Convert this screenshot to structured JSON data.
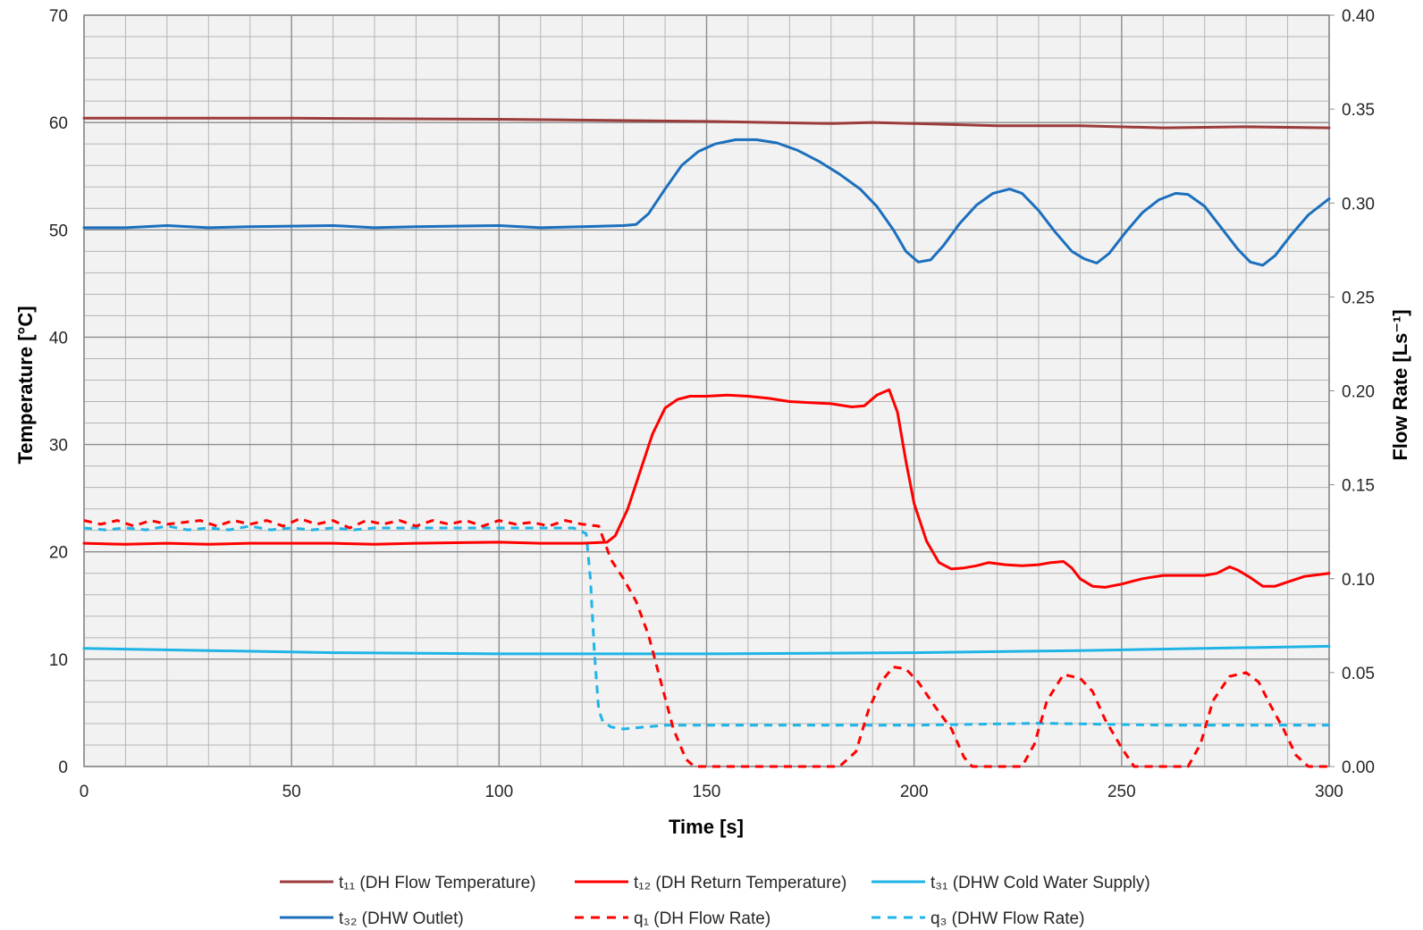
{
  "chart_data": {
    "type": "line",
    "xlabel": "Time [s]",
    "ylabel_left": "Temperature [°C]",
    "ylabel_right": "Flow Rate [Ls⁻¹]",
    "xlim": [
      0,
      300
    ],
    "ylim_left": [
      0,
      70
    ],
    "ylim_right": [
      0,
      0.4
    ],
    "x_ticks": [
      "0",
      "50",
      "100",
      "150",
      "200",
      "250",
      "300"
    ],
    "y_left_ticks": [
      "0",
      "10",
      "20",
      "30",
      "40",
      "50",
      "60",
      "70"
    ],
    "y_right_ticks": [
      "0.00",
      "0.05",
      "0.10",
      "0.15",
      "0.20",
      "0.25",
      "0.30",
      "0.35",
      "0.40"
    ],
    "grid": true,
    "plot_background": "#f2f2f2",
    "legend_position": "bottom",
    "series": [
      {
        "name": "t₁₁ (DH Flow Temperature)",
        "axis": "left",
        "color": "#9c3b3b",
        "style": "solid",
        "points": [
          [
            0,
            60.4
          ],
          [
            50,
            60.4
          ],
          [
            100,
            60.3
          ],
          [
            150,
            60.1
          ],
          [
            180,
            59.9
          ],
          [
            190,
            60.0
          ],
          [
            200,
            59.9
          ],
          [
            220,
            59.7
          ],
          [
            240,
            59.7
          ],
          [
            260,
            59.5
          ],
          [
            280,
            59.6
          ],
          [
            300,
            59.5
          ]
        ]
      },
      {
        "name": "t₁₂ (DH Return Temperature)",
        "axis": "left",
        "color": "#ff0000",
        "style": "solid",
        "points": [
          [
            0,
            20.8
          ],
          [
            10,
            20.7
          ],
          [
            20,
            20.8
          ],
          [
            30,
            20.7
          ],
          [
            40,
            20.8
          ],
          [
            60,
            20.8
          ],
          [
            70,
            20.7
          ],
          [
            80,
            20.8
          ],
          [
            100,
            20.9
          ],
          [
            110,
            20.8
          ],
          [
            120,
            20.8
          ],
          [
            126,
            20.9
          ],
          [
            128,
            21.5
          ],
          [
            131,
            24
          ],
          [
            134,
            27.5
          ],
          [
            137,
            31
          ],
          [
            140,
            33.4
          ],
          [
            143,
            34.2
          ],
          [
            146,
            34.5
          ],
          [
            150,
            34.5
          ],
          [
            155,
            34.6
          ],
          [
            160,
            34.5
          ],
          [
            165,
            34.3
          ],
          [
            170,
            34.0
          ],
          [
            175,
            33.9
          ],
          [
            180,
            33.8
          ],
          [
            185,
            33.5
          ],
          [
            188,
            33.6
          ],
          [
            191,
            34.6
          ],
          [
            194,
            35.1
          ],
          [
            196,
            33
          ],
          [
            198,
            28.5
          ],
          [
            200,
            24.5
          ],
          [
            203,
            21.0
          ],
          [
            206,
            19.0
          ],
          [
            209,
            18.4
          ],
          [
            212,
            18.5
          ],
          [
            215,
            18.7
          ],
          [
            218,
            19.0
          ],
          [
            222,
            18.8
          ],
          [
            226,
            18.7
          ],
          [
            230,
            18.8
          ],
          [
            233,
            19.0
          ],
          [
            236,
            19.1
          ],
          [
            238,
            18.5
          ],
          [
            240,
            17.5
          ],
          [
            243,
            16.8
          ],
          [
            246,
            16.7
          ],
          [
            250,
            17.0
          ],
          [
            255,
            17.5
          ],
          [
            260,
            17.8
          ],
          [
            265,
            17.8
          ],
          [
            270,
            17.8
          ],
          [
            273,
            18.0
          ],
          [
            276,
            18.6
          ],
          [
            278,
            18.3
          ],
          [
            281,
            17.6
          ],
          [
            284,
            16.8
          ],
          [
            287,
            16.8
          ],
          [
            290,
            17.2
          ],
          [
            294,
            17.7
          ],
          [
            300,
            18.0
          ]
        ]
      },
      {
        "name": "t₃₁ (DHW Cold Water Supply)",
        "axis": "left",
        "color": "#1fb4e6",
        "style": "solid",
        "points": [
          [
            0,
            11.0
          ],
          [
            30,
            10.8
          ],
          [
            60,
            10.6
          ],
          [
            100,
            10.5
          ],
          [
            150,
            10.5
          ],
          [
            200,
            10.6
          ],
          [
            240,
            10.8
          ],
          [
            270,
            11.0
          ],
          [
            300,
            11.2
          ]
        ]
      },
      {
        "name": "t₃₂ (DHW Outlet)",
        "axis": "left",
        "color": "#1b6fbd",
        "style": "solid",
        "points": [
          [
            0,
            50.2
          ],
          [
            10,
            50.2
          ],
          [
            20,
            50.4
          ],
          [
            30,
            50.2
          ],
          [
            40,
            50.3
          ],
          [
            60,
            50.4
          ],
          [
            70,
            50.2
          ],
          [
            80,
            50.3
          ],
          [
            100,
            50.4
          ],
          [
            110,
            50.2
          ],
          [
            120,
            50.3
          ],
          [
            130,
            50.4
          ],
          [
            133,
            50.5
          ],
          [
            136,
            51.5
          ],
          [
            140,
            53.8
          ],
          [
            144,
            56
          ],
          [
            148,
            57.3
          ],
          [
            152,
            58.0
          ],
          [
            157,
            58.4
          ],
          [
            162,
            58.4
          ],
          [
            167,
            58.1
          ],
          [
            172,
            57.4
          ],
          [
            177,
            56.4
          ],
          [
            182,
            55.2
          ],
          [
            187,
            53.8
          ],
          [
            191,
            52.2
          ],
          [
            195,
            50.0
          ],
          [
            198,
            48.0
          ],
          [
            201,
            47.0
          ],
          [
            204,
            47.2
          ],
          [
            207,
            48.5
          ],
          [
            211,
            50.6
          ],
          [
            215,
            52.3
          ],
          [
            219,
            53.4
          ],
          [
            223,
            53.8
          ],
          [
            226,
            53.4
          ],
          [
            230,
            51.8
          ],
          [
            234,
            49.8
          ],
          [
            238,
            48.0
          ],
          [
            241,
            47.3
          ],
          [
            244,
            46.9
          ],
          [
            247,
            47.8
          ],
          [
            251,
            49.8
          ],
          [
            255,
            51.6
          ],
          [
            259,
            52.8
          ],
          [
            263,
            53.4
          ],
          [
            266,
            53.3
          ],
          [
            270,
            52.2
          ],
          [
            274,
            50.2
          ],
          [
            278,
            48.2
          ],
          [
            281,
            47.0
          ],
          [
            284,
            46.7
          ],
          [
            287,
            47.6
          ],
          [
            291,
            49.6
          ],
          [
            295,
            51.4
          ],
          [
            300,
            52.9
          ]
        ]
      },
      {
        "name": "q₁ (DH Flow Rate)",
        "axis": "right",
        "color": "#ff0000",
        "style": "dashed",
        "points": [
          [
            0,
            0.131
          ],
          [
            4,
            0.129
          ],
          [
            8,
            0.131
          ],
          [
            12,
            0.128
          ],
          [
            16,
            0.131
          ],
          [
            20,
            0.129
          ],
          [
            24,
            0.13
          ],
          [
            28,
            0.131
          ],
          [
            32,
            0.128
          ],
          [
            36,
            0.131
          ],
          [
            40,
            0.129
          ],
          [
            44,
            0.131
          ],
          [
            48,
            0.128
          ],
          [
            52,
            0.132
          ],
          [
            56,
            0.129
          ],
          [
            60,
            0.131
          ],
          [
            64,
            0.127
          ],
          [
            68,
            0.131
          ],
          [
            72,
            0.129
          ],
          [
            76,
            0.131
          ],
          [
            80,
            0.128
          ],
          [
            84,
            0.131
          ],
          [
            88,
            0.129
          ],
          [
            92,
            0.131
          ],
          [
            96,
            0.128
          ],
          [
            100,
            0.131
          ],
          [
            104,
            0.129
          ],
          [
            108,
            0.13
          ],
          [
            112,
            0.128
          ],
          [
            116,
            0.131
          ],
          [
            120,
            0.129
          ],
          [
            124,
            0.128
          ],
          [
            127,
            0.11
          ],
          [
            130,
            0.1
          ],
          [
            133,
            0.088
          ],
          [
            136,
            0.07
          ],
          [
            139,
            0.045
          ],
          [
            142,
            0.02
          ],
          [
            145,
            0.004
          ],
          [
            147,
            0
          ],
          [
            160,
            0
          ],
          [
            175,
            0
          ],
          [
            182,
            0
          ],
          [
            186,
            0.008
          ],
          [
            189,
            0.03
          ],
          [
            192,
            0.045
          ],
          [
            195,
            0.053
          ],
          [
            198,
            0.052
          ],
          [
            201,
            0.045
          ],
          [
            205,
            0.032
          ],
          [
            209,
            0.02
          ],
          [
            212,
            0.005
          ],
          [
            214,
            0
          ],
          [
            222,
            0
          ],
          [
            226,
            0
          ],
          [
            229,
            0.012
          ],
          [
            232,
            0.035
          ],
          [
            236,
            0.049
          ],
          [
            240,
            0.047
          ],
          [
            243,
            0.04
          ],
          [
            246,
            0.025
          ],
          [
            250,
            0.01
          ],
          [
            253,
            0
          ],
          [
            262,
            0
          ],
          [
            266,
            0
          ],
          [
            269,
            0.012
          ],
          [
            272,
            0.035
          ],
          [
            276,
            0.048
          ],
          [
            280,
            0.05
          ],
          [
            283,
            0.045
          ],
          [
            286,
            0.032
          ],
          [
            289,
            0.02
          ],
          [
            292,
            0.006
          ],
          [
            295,
            0
          ],
          [
            300,
            0
          ]
        ]
      },
      {
        "name": "q₃ (DHW Flow Rate)",
        "axis": "right",
        "color": "#1fb4e6",
        "style": "dashed",
        "points": [
          [
            0,
            0.127
          ],
          [
            5,
            0.126
          ],
          [
            10,
            0.127
          ],
          [
            15,
            0.126
          ],
          [
            20,
            0.128
          ],
          [
            25,
            0.126
          ],
          [
            30,
            0.127
          ],
          [
            35,
            0.126
          ],
          [
            40,
            0.128
          ],
          [
            45,
            0.126
          ],
          [
            50,
            0.127
          ],
          [
            55,
            0.126
          ],
          [
            60,
            0.127
          ],
          [
            65,
            0.126
          ],
          [
            70,
            0.127
          ],
          [
            80,
            0.127
          ],
          [
            90,
            0.127
          ],
          [
            100,
            0.127
          ],
          [
            110,
            0.127
          ],
          [
            118,
            0.127
          ],
          [
            121,
            0.124
          ],
          [
            122,
            0.1
          ],
          [
            123,
            0.06
          ],
          [
            124,
            0.03
          ],
          [
            125,
            0.024
          ],
          [
            127,
            0.021
          ],
          [
            130,
            0.02
          ],
          [
            140,
            0.022
          ],
          [
            150,
            0.022
          ],
          [
            170,
            0.022
          ],
          [
            200,
            0.022
          ],
          [
            230,
            0.023
          ],
          [
            260,
            0.022
          ],
          [
            280,
            0.022
          ],
          [
            300,
            0.022
          ]
        ]
      }
    ]
  }
}
